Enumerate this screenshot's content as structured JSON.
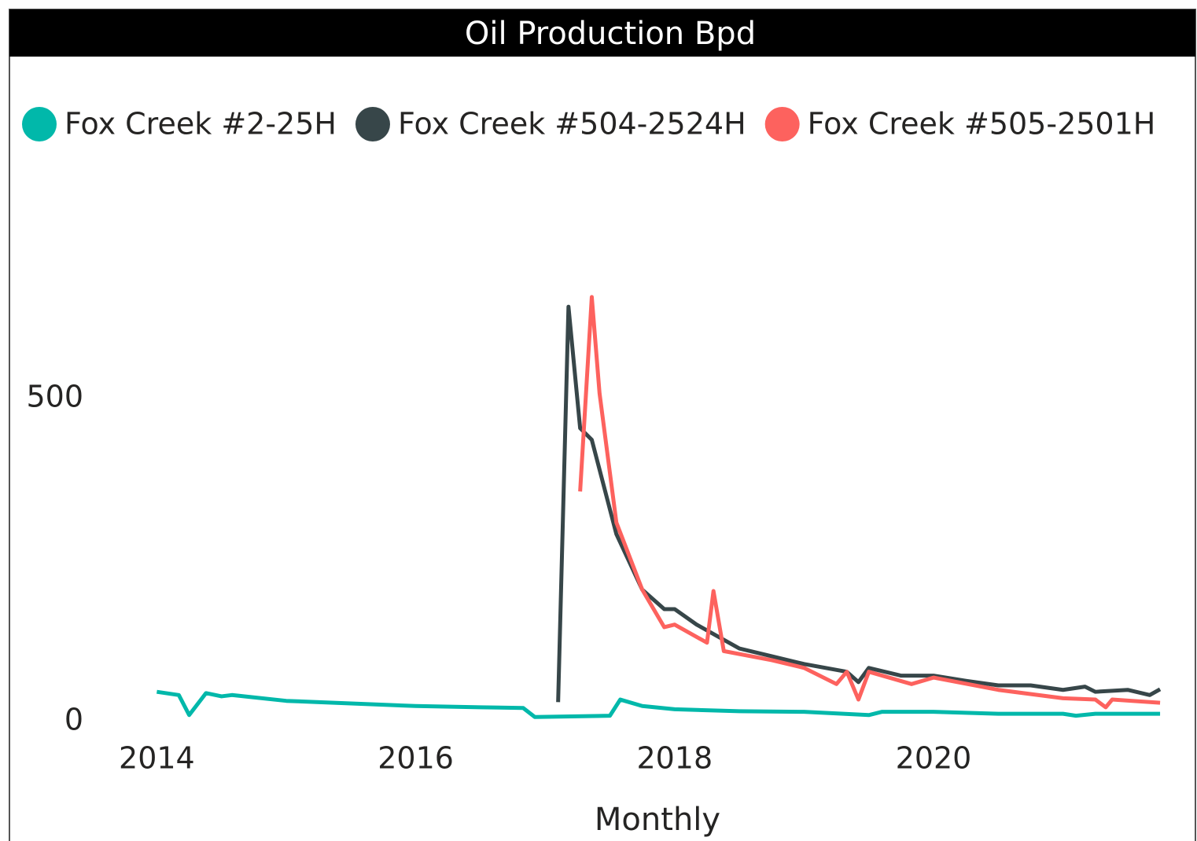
{
  "chart_data": {
    "type": "line",
    "title": "Oil Production Bpd",
    "x_label": "Monthly",
    "xlim": [
      2013.7,
      2021.78
    ],
    "xticks": [
      2014,
      2016,
      2018,
      2020
    ],
    "ylim": [
      0,
      860
    ],
    "yticks": [
      0,
      500
    ],
    "grid": false,
    "legend": "top-left",
    "series": [
      {
        "name": "Fox Creek #2-25H",
        "color": "#01B8AA",
        "x": [
          2014.0,
          2014.17,
          2014.25,
          2014.38,
          2014.5,
          2014.58,
          2015.0,
          2015.5,
          2016.0,
          2016.5,
          2016.83,
          2016.92,
          2017.5,
          2017.58,
          2017.75,
          2018.0,
          2018.5,
          2019.0,
          2019.5,
          2019.6,
          2020.0,
          2020.5,
          2021.0,
          2021.1,
          2021.25,
          2021.75
        ],
        "values": [
          46,
          41,
          10,
          44,
          39,
          41,
          32,
          28,
          24,
          22,
          21,
          7,
          9,
          34,
          24,
          19,
          16,
          15,
          10,
          15,
          15,
          12,
          12,
          9,
          12,
          12
        ]
      },
      {
        "name": "Fox Creek #504-2524H",
        "color": "#374649",
        "x": [
          2017.1,
          2017.18,
          2017.27,
          2017.36,
          2017.55,
          2017.75,
          2017.92,
          2018.0,
          2018.17,
          2018.5,
          2018.75,
          2019.0,
          2019.33,
          2019.42,
          2019.5,
          2019.75,
          2020.0,
          2020.25,
          2020.5,
          2020.75,
          2021.0,
          2021.17,
          2021.25,
          2021.5,
          2021.67,
          2021.75
        ],
        "values": [
          30,
          642,
          454,
          436,
          290,
          204,
          174,
          174,
          150,
          113,
          101,
          89,
          77,
          61,
          83,
          71,
          71,
          63,
          56,
          56,
          49,
          54,
          46,
          49,
          41,
          50
        ]
      },
      {
        "name": "Fox Creek #505-2501H",
        "color": "#FD625E",
        "x": [
          2017.27,
          2017.36,
          2017.42,
          2017.55,
          2017.75,
          2017.92,
          2018.0,
          2018.25,
          2018.3,
          2018.38,
          2018.75,
          2019.0,
          2019.25,
          2019.33,
          2019.42,
          2019.5,
          2019.83,
          2020.0,
          2020.5,
          2021.0,
          2021.25,
          2021.33,
          2021.38,
          2021.75
        ],
        "values": [
          356,
          657,
          508,
          308,
          204,
          146,
          150,
          122,
          202,
          109,
          95,
          83,
          58,
          77,
          34,
          77,
          58,
          68,
          49,
          36,
          34,
          22,
          34,
          29
        ]
      }
    ]
  }
}
